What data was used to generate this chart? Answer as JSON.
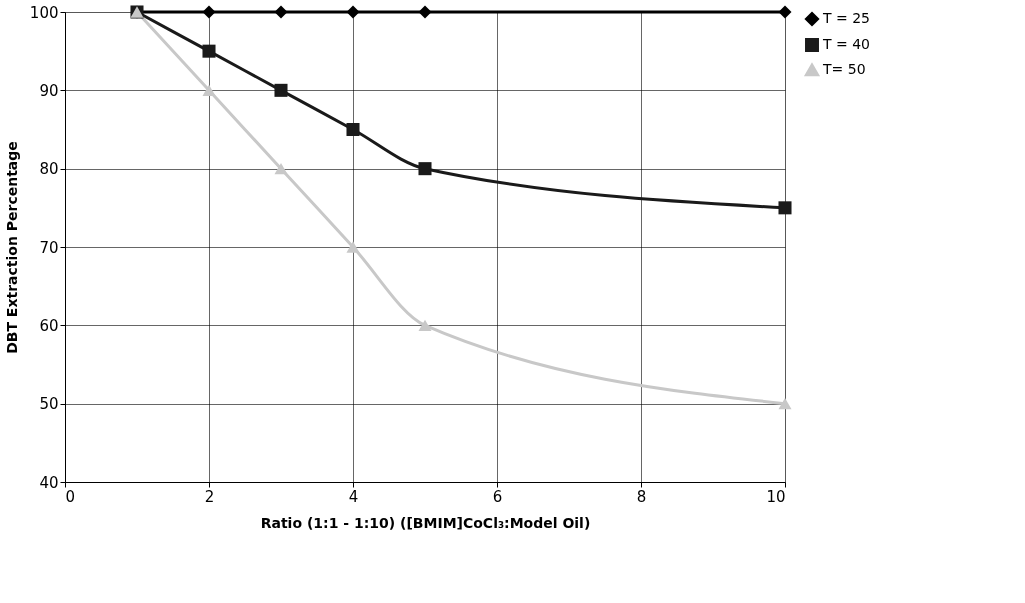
{
  "chart_data": {
    "type": "line",
    "xlabel": "Ratio (1:1 - 1:10) ([BMIM]CoCl₃:Model Oil)",
    "ylabel": "DBT Extraction Percentage",
    "x": [
      1,
      2,
      3,
      4,
      5,
      10
    ],
    "series": [
      {
        "name": "T = 25",
        "color": "#000000",
        "marker": "diamond",
        "values": [
          100,
          100,
          100,
          100,
          100,
          100
        ]
      },
      {
        "name": "T = 40",
        "color": "#1a1a1a",
        "marker": "square",
        "values": [
          100,
          95,
          90,
          85,
          80,
          75
        ]
      },
      {
        "name": "T= 50",
        "color": "#c8c8c8",
        "marker": "triangle",
        "values": [
          100,
          90,
          80,
          70,
          60,
          50
        ]
      }
    ],
    "xlim": [
      0,
      10
    ],
    "xticks": [
      0,
      2,
      4,
      6,
      8,
      10
    ],
    "ylim": [
      40,
      100
    ],
    "yticks": [
      40,
      50,
      60,
      70,
      80,
      90,
      100
    ],
    "grid": true,
    "legend": "right",
    "line_style": "solid"
  }
}
